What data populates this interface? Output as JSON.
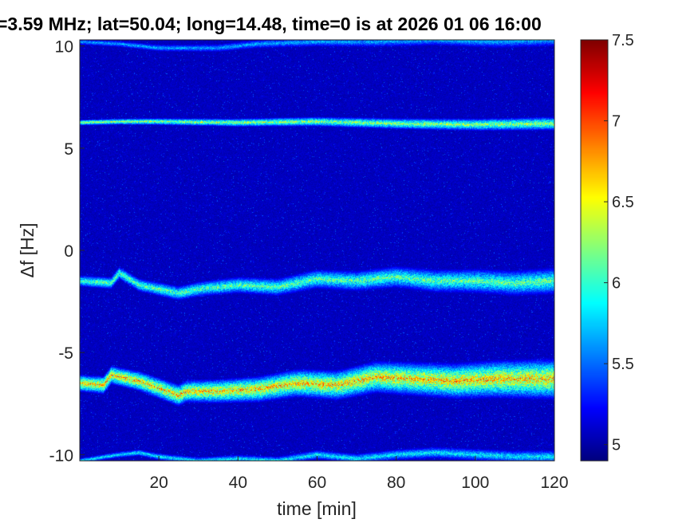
{
  "chart_data": {
    "type": "heatmap",
    "title": "=3.59 MHz;  lat=50.04; long=14.48, time=0 is at 2026 01 06 16:00",
    "xlabel": "time [min]",
    "ylabel": "Δf [Hz]",
    "xlim": [
      0,
      120
    ],
    "ylim": [
      -10.3,
      10.3
    ],
    "x_ticks": [
      20,
      40,
      60,
      80,
      100,
      120
    ],
    "y_ticks": [
      10,
      5,
      0,
      -5,
      -10
    ],
    "colormap": "jet",
    "colorbar": {
      "range": [
        4.9,
        7.5
      ],
      "ticks": [
        "7.5",
        "7",
        "6.5",
        "6",
        "5.5",
        "5"
      ]
    },
    "background_value": 5.0,
    "traces": [
      {
        "points": [
          [
            0,
            6.25
          ],
          [
            10,
            6.3
          ],
          [
            20,
            6.3
          ],
          [
            40,
            6.25
          ],
          [
            60,
            6.3
          ],
          [
            80,
            6.2
          ],
          [
            100,
            6.15
          ],
          [
            120,
            6.2
          ]
        ],
        "intensity": 6.5,
        "width": 0.15,
        "note_visible": "horizontal band near +6.2 Hz"
      },
      {
        "points": [
          [
            0,
            -1.5
          ],
          [
            8,
            -1.6
          ],
          [
            10,
            -1.1
          ],
          [
            15,
            -1.7
          ],
          [
            25,
            -2.1
          ],
          [
            30,
            -1.9
          ],
          [
            40,
            -1.7
          ],
          [
            50,
            -1.8
          ],
          [
            60,
            -1.4
          ],
          [
            70,
            -1.5
          ],
          [
            80,
            -1.3
          ],
          [
            90,
            -1.5
          ],
          [
            100,
            -1.5
          ],
          [
            110,
            -1.6
          ],
          [
            120,
            -1.5
          ]
        ],
        "intensity": 6.3,
        "width": 0.3
      },
      {
        "points": [
          [
            0,
            -6.5
          ],
          [
            6,
            -6.6
          ],
          [
            8,
            -6.1
          ],
          [
            15,
            -6.4
          ],
          [
            25,
            -7.1
          ],
          [
            27,
            -6.9
          ],
          [
            35,
            -6.9
          ],
          [
            45,
            -6.8
          ],
          [
            55,
            -6.5
          ],
          [
            65,
            -6.6
          ],
          [
            75,
            -6.2
          ],
          [
            85,
            -6.3
          ],
          [
            95,
            -6.4
          ],
          [
            105,
            -6.3
          ],
          [
            115,
            -6.3
          ],
          [
            120,
            -6.3
          ]
        ],
        "intensity": 6.9,
        "width": 0.45
      },
      {
        "points": [
          [
            0,
            -10.3
          ],
          [
            10,
            -10.0
          ],
          [
            15,
            -9.9
          ],
          [
            20,
            -10.1
          ],
          [
            30,
            -10.3
          ],
          [
            40,
            -10.2
          ],
          [
            50,
            -10.3
          ],
          [
            60,
            -10.0
          ],
          [
            70,
            -10.2
          ],
          [
            80,
            -10.0
          ],
          [
            90,
            -9.9
          ],
          [
            100,
            -10.0
          ],
          [
            110,
            -10.1
          ],
          [
            120,
            -10.1
          ]
        ],
        "intensity": 6.0,
        "width": 0.15
      },
      {
        "points": [
          [
            0,
            10.2
          ],
          [
            10,
            10.1
          ],
          [
            20,
            9.9
          ],
          [
            35,
            9.9
          ],
          [
            45,
            10.1
          ],
          [
            60,
            10.2
          ],
          [
            75,
            10.2
          ],
          [
            90,
            10.3
          ],
          [
            105,
            10.2
          ],
          [
            120,
            10.3
          ]
        ],
        "intensity": 5.8,
        "width": 0.15
      }
    ]
  }
}
